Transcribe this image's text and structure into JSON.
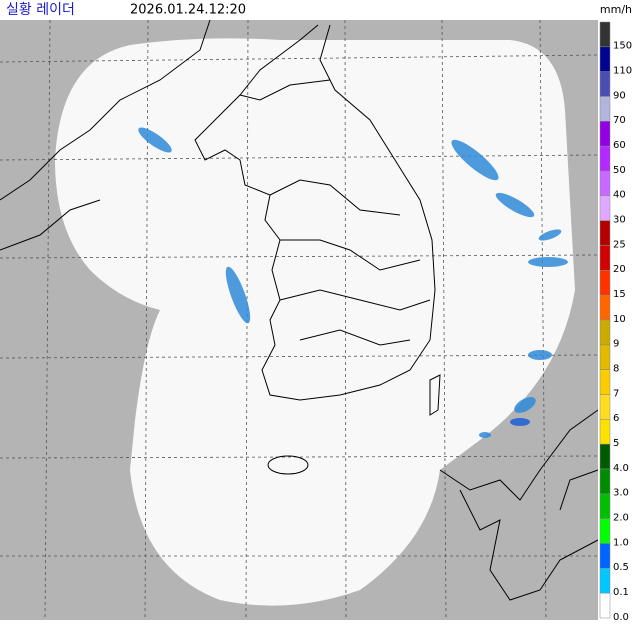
{
  "header": {
    "title": "실황 레이더",
    "time": "2026.01.24.12:20",
    "unit": "mm/h"
  },
  "legend": {
    "items": [
      {
        "label": "150",
        "color": "#333333"
      },
      {
        "label": "110",
        "color": "#000390"
      },
      {
        "label": "90",
        "color": "#4c4eb1"
      },
      {
        "label": "70",
        "color": "#b3b4de"
      },
      {
        "label": "60",
        "color": "#9300e4"
      },
      {
        "label": "50",
        "color": "#b329ff"
      },
      {
        "label": "40",
        "color": "#c969ff"
      },
      {
        "label": "30",
        "color": "#e0a9ff"
      },
      {
        "label": "25",
        "color": "#b40000"
      },
      {
        "label": "20",
        "color": "#d20000"
      },
      {
        "label": "15",
        "color": "#ff3200"
      },
      {
        "label": "10",
        "color": "#ff6600"
      },
      {
        "label": "9",
        "color": "#ccaa00"
      },
      {
        "label": "8",
        "color": "#e0b900"
      },
      {
        "label": "7",
        "color": "#f9cd00"
      },
      {
        "label": "6",
        "color": "#ffdc1f"
      },
      {
        "label": "5",
        "color": "#ffe100"
      },
      {
        "label": "4.0",
        "color": "#005a00"
      },
      {
        "label": "3.0",
        "color": "#008c00"
      },
      {
        "label": "2.0",
        "color": "#00be00"
      },
      {
        "label": "1.0",
        "color": "#00ff00"
      },
      {
        "label": "0.5",
        "color": "#0066ff"
      },
      {
        "label": "0.1",
        "color": "#00c8ff"
      },
      {
        "label": "0.0",
        "color": "#ffffff"
      }
    ]
  }
}
